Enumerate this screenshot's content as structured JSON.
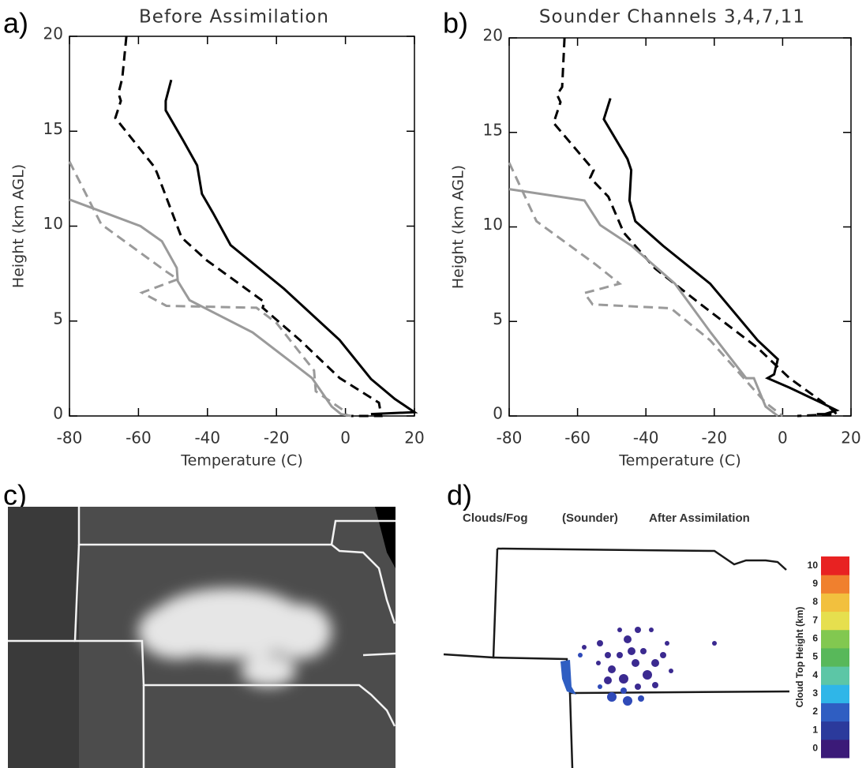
{
  "chart_data": [
    {
      "type": "line",
      "panel_label": "a)",
      "title": "Before Assimilation",
      "xlabel": "Temperature (C)",
      "ylabel": "Height (km AGL)",
      "xlim": [
        -80,
        20
      ],
      "ylim": [
        0,
        20
      ],
      "xticks": [
        -80,
        -60,
        -40,
        -20,
        0,
        20
      ],
      "yticks": [
        0,
        5,
        10,
        15,
        20
      ],
      "series": [
        {
          "color": "#000000",
          "dash": false,
          "x": [
            -50.5,
            -52.1,
            -52.1,
            -47,
            -43,
            -41.6,
            -38.4,
            -33.3,
            -17.8,
            -1.7,
            7.4,
            14.3,
            20,
            7.4
          ],
          "y": [
            17.7,
            16.6,
            16.1,
            14.5,
            13.2,
            11.7,
            10.7,
            9.0,
            6.7,
            4.0,
            1.95,
            0.9,
            0.2,
            0.1
          ]
        },
        {
          "color": "#000000",
          "dash": true,
          "x": [
            -63.5,
            -64.7,
            -65.8,
            -65.1,
            -66.7,
            -55.3,
            -54.4,
            -47.5,
            -40.2,
            -23.5,
            -24,
            -13.2,
            -1.7,
            9.7,
            10.4,
            1.7
          ],
          "y": [
            20,
            17.8,
            17,
            16.6,
            15.7,
            13.1,
            12.7,
            9.4,
            8.2,
            6.0,
            5.7,
            4.0,
            2.0,
            0.7,
            0,
            0
          ]
        },
        {
          "color": "#9a9a9a",
          "dash": false,
          "x": [
            -80,
            -59.4,
            -53.2,
            -48.9,
            -48.6,
            -45.2,
            -26.9,
            -9.7,
            -4,
            -1.3,
            1.7
          ],
          "y": [
            11.4,
            10.0,
            9.2,
            7.8,
            7.1,
            6.1,
            4.4,
            2.0,
            0.5,
            0.1,
            0
          ]
        },
        {
          "color": "#9a9a9a",
          "dash": true,
          "x": [
            -80,
            -70.8,
            -51.9,
            -48.6,
            -59,
            -51.9,
            -25.8,
            -20,
            -9.1,
            -8.6,
            -0.6,
            0.5
          ],
          "y": [
            13.4,
            10.1,
            7.6,
            7.2,
            6.5,
            5.8,
            5.7,
            4.9,
            2.4,
            1.3,
            0.3,
            0
          ]
        }
      ]
    },
    {
      "type": "line",
      "panel_label": "b)",
      "title": "Sounder Channels 3,4,7,11",
      "xlabel": "Temperature (C)",
      "ylabel": "Height (km AGL)",
      "xlim": [
        -80,
        20
      ],
      "ylim": [
        0,
        20
      ],
      "xticks": [
        -80,
        -60,
        -40,
        -20,
        0,
        20
      ],
      "yticks": [
        0,
        5,
        10,
        15,
        20
      ],
      "series": [
        {
          "color": "#000000",
          "dash": false,
          "x": [
            -50.4,
            -52.3,
            -45.4,
            -44.3,
            -44.8,
            -43.1,
            -35,
            -21.2,
            -7.3,
            -1.4,
            -2.5,
            -4.4,
            2,
            11.3,
            15.8,
            12.4,
            10
          ],
          "y": [
            16.8,
            15.7,
            13.6,
            13,
            11.4,
            10.3,
            9.0,
            7.0,
            4.0,
            3.0,
            2.2,
            2.0,
            1.5,
            0.7,
            0.3,
            0.1,
            0.1
          ]
        },
        {
          "color": "#000000",
          "dash": true,
          "x": [
            -63.8,
            -64.5,
            -66,
            -65,
            -67,
            -55.3,
            -56.3,
            -51,
            -46.5,
            -37.3,
            -23.9,
            -7.3,
            2,
            13.5,
            15.8,
            4.3
          ],
          "y": [
            20,
            17.4,
            17,
            16.6,
            15.5,
            13,
            12.6,
            11.6,
            9.7,
            7.8,
            5.9,
            3.6,
            2,
            0.5,
            0.1,
            0
          ]
        },
        {
          "color": "#9a9a9a",
          "dash": false,
          "x": [
            -80,
            -58,
            -53.4,
            -44.2,
            -31.5,
            -21,
            -10.7,
            -8.4,
            -5,
            -1.4
          ],
          "y": [
            12,
            11.4,
            10.1,
            9.0,
            7.0,
            4.4,
            2.0,
            2.0,
            0.5,
            0
          ]
        },
        {
          "color": "#9a9a9a",
          "dash": true,
          "x": [
            -80,
            -72,
            -54.6,
            -47.7,
            -58,
            -55.6,
            -32.7,
            -21.2,
            -5,
            0
          ],
          "y": [
            13.4,
            10.3,
            8.0,
            7.0,
            6.5,
            5.9,
            5.7,
            4.0,
            0.7,
            0
          ]
        }
      ]
    }
  ],
  "panels": {
    "c": {
      "label": "c)"
    },
    "d": {
      "label": "d)",
      "title_parts": [
        "Clouds/Fog",
        "(Sounder)",
        "After Assimilation"
      ],
      "colorbar": {
        "label": "Cloud Top Height (km)",
        "ticks": [
          0,
          1,
          2,
          3,
          4,
          5,
          6,
          7,
          8,
          9,
          10
        ],
        "colors": [
          "#3b1a78",
          "#2b3a9c",
          "#2f5ec2",
          "#2fb6e8",
          "#5cc6a6",
          "#58b85a",
          "#82c850",
          "#e6df4e",
          "#f2c03e",
          "#f0802e",
          "#e82222"
        ]
      }
    }
  }
}
